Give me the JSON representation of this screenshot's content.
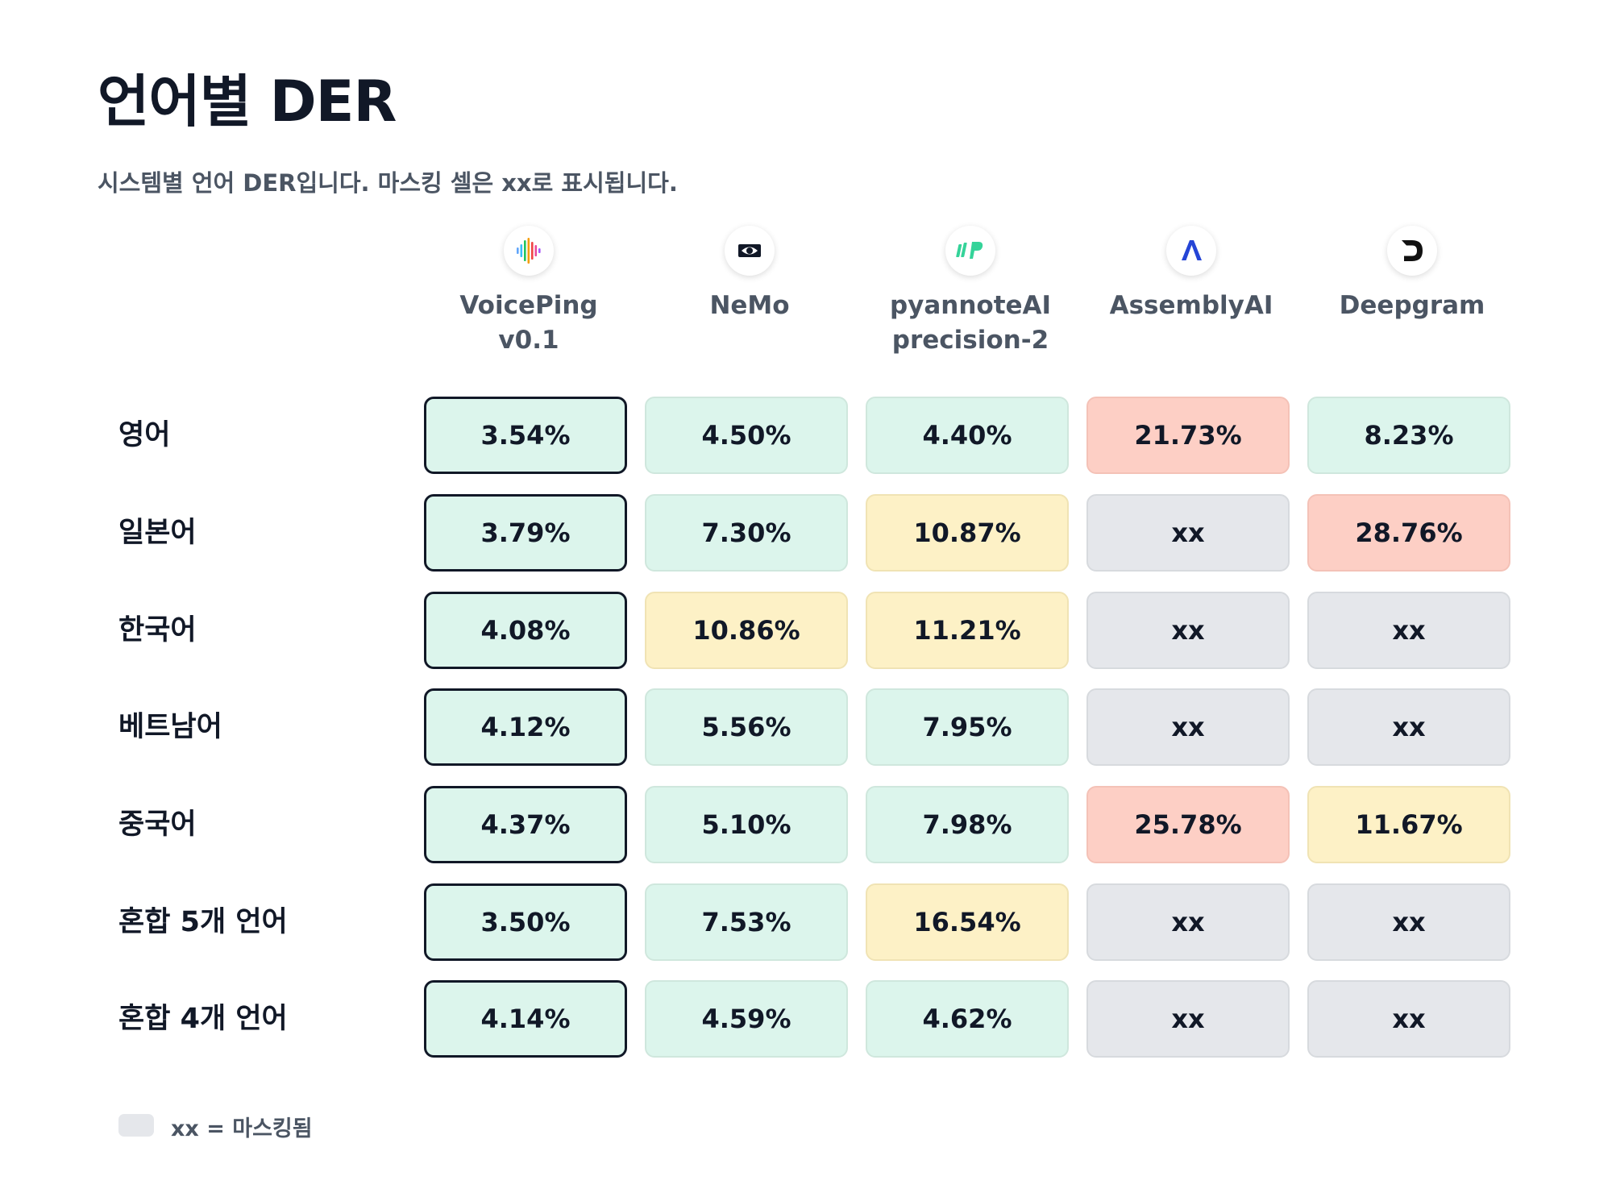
{
  "header": {
    "title": "언어별 DER",
    "subtitle": "시스템별 언어 DER입니다. 마스킹 셀은 xx로 표시됩니다."
  },
  "columns": [
    {
      "name": "VoicePing\nv0.1",
      "icon": "waveform-icon",
      "highlight": true
    },
    {
      "name": "NeMo",
      "icon": "nvidia-eye-icon",
      "highlight": false
    },
    {
      "name": "pyannoteAI\nprecision-2",
      "icon": "pyannote-p-icon",
      "highlight": false
    },
    {
      "name": "AssemblyAI",
      "icon": "assembly-a-icon",
      "highlight": false
    },
    {
      "name": "Deepgram",
      "icon": "deepgram-d-icon",
      "highlight": false
    }
  ],
  "rows": [
    {
      "label": "영어",
      "values": [
        "3.54%",
        "4.50%",
        "4.40%",
        "21.73%",
        "8.23%"
      ],
      "status": [
        "green",
        "green",
        "green",
        "red",
        "green"
      ]
    },
    {
      "label": "일본어",
      "values": [
        "3.79%",
        "7.30%",
        "10.87%",
        "xx",
        "28.76%"
      ],
      "status": [
        "green",
        "green",
        "yellow",
        "gray",
        "red"
      ]
    },
    {
      "label": "한국어",
      "values": [
        "4.08%",
        "10.86%",
        "11.21%",
        "xx",
        "xx"
      ],
      "status": [
        "green",
        "yellow",
        "yellow",
        "gray",
        "gray"
      ]
    },
    {
      "label": "베트남어",
      "values": [
        "4.12%",
        "5.56%",
        "7.95%",
        "xx",
        "xx"
      ],
      "status": [
        "green",
        "green",
        "green",
        "gray",
        "gray"
      ]
    },
    {
      "label": "중국어",
      "values": [
        "4.37%",
        "5.10%",
        "7.98%",
        "25.78%",
        "11.67%"
      ],
      "status": [
        "green",
        "green",
        "green",
        "red",
        "yellow"
      ]
    },
    {
      "label": "혼합 5개 언어",
      "values": [
        "3.50%",
        "7.53%",
        "16.54%",
        "xx",
        "xx"
      ],
      "status": [
        "green",
        "green",
        "yellow",
        "gray",
        "gray"
      ]
    },
    {
      "label": "혼합 4개 언어",
      "values": [
        "4.14%",
        "4.59%",
        "4.62%",
        "xx",
        "xx"
      ],
      "status": [
        "green",
        "green",
        "green",
        "gray",
        "gray"
      ]
    }
  ],
  "legend": {
    "text": "xx = 마스킹됨"
  },
  "colors": {
    "green": "#dcf5ec",
    "yellow": "#fdf1c6",
    "red": "#fdcfc5",
    "gray": "#e5e7eb",
    "highlight_border": "#111827"
  }
}
